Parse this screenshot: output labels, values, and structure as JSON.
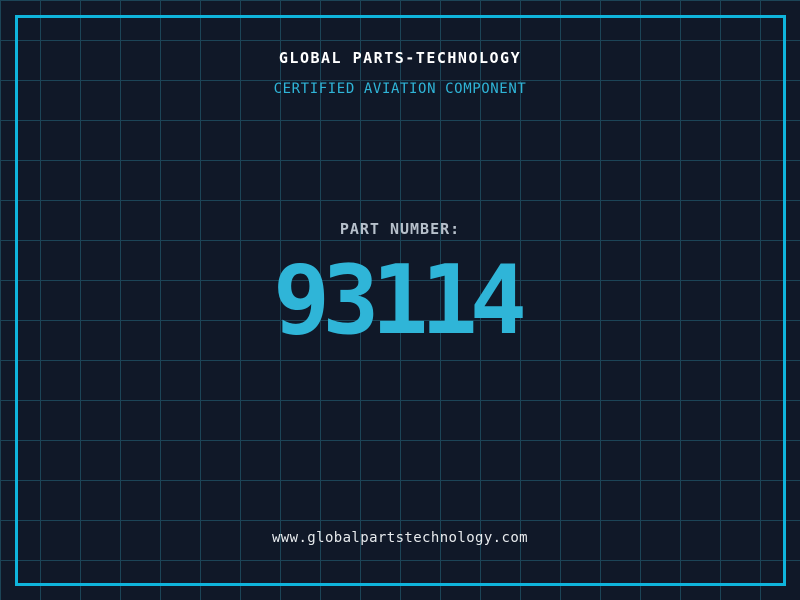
{
  "header": {
    "title": "GLOBAL PARTS-TECHNOLOGY",
    "subtitle": "CERTIFIED AVIATION COMPONENT"
  },
  "part": {
    "label": "PART NUMBER:",
    "number": "93114"
  },
  "footer": {
    "url": "www.globalpartstechnology.com"
  },
  "colors": {
    "background": "#101828",
    "grid_line": "#1c4457",
    "frame": "#0fb4dc",
    "accent_cyan": "#2fb5d8",
    "title_white": "#ffffff",
    "label_gray": "#b7c0cb",
    "url_white": "#e8ebee"
  }
}
